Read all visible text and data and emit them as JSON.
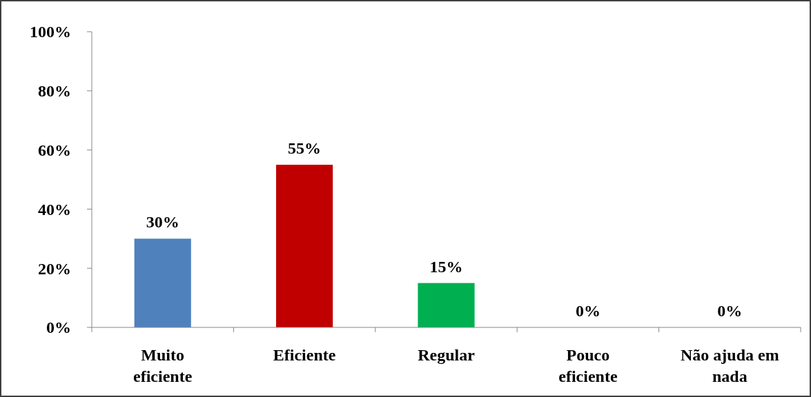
{
  "chart_data": {
    "type": "bar",
    "categories": [
      "Muito eficiente",
      "Eficiente",
      "Regular",
      "Pouco eficiente",
      "Não ajuda em nada"
    ],
    "values": [
      30,
      55,
      15,
      0,
      0
    ],
    "colors": [
      "#4f81bd",
      "#c00000",
      "#00b050",
      "#8064a2",
      "#f79646"
    ],
    "ylim": [
      0,
      100
    ],
    "yticks": [
      {
        "value": 0,
        "label": "0%"
      },
      {
        "value": 20,
        "label": "20%"
      },
      {
        "value": 40,
        "label": "40%"
      },
      {
        "value": 60,
        "label": "60%"
      },
      {
        "value": 80,
        "label": "80%"
      },
      {
        "value": 100,
        "label": "100%"
      }
    ],
    "value_labels": [
      "30%",
      "55%",
      "15%",
      "0%",
      "0%"
    ],
    "grid": false
  }
}
